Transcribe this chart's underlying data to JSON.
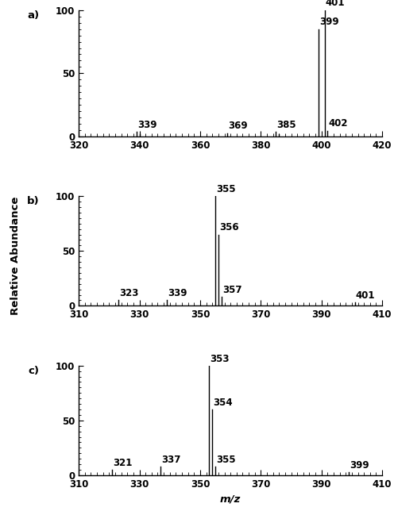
{
  "panel_a": {
    "label": "a)",
    "xlim": [
      320,
      420
    ],
    "ylim": [
      0,
      100
    ],
    "xticks": [
      320,
      340,
      360,
      380,
      400,
      420
    ],
    "yticks": [
      0,
      50,
      100
    ],
    "peaks": [
      {
        "mz": 339,
        "intensity": 3.5,
        "label": "339"
      },
      {
        "mz": 340,
        "intensity": 2.0,
        "label": ""
      },
      {
        "mz": 369,
        "intensity": 2.5,
        "label": "369"
      },
      {
        "mz": 385,
        "intensity": 3.5,
        "label": "385"
      },
      {
        "mz": 386,
        "intensity": 2.0,
        "label": ""
      },
      {
        "mz": 399,
        "intensity": 85.0,
        "label": "399"
      },
      {
        "mz": 401,
        "intensity": 100.0,
        "label": "401"
      },
      {
        "mz": 402,
        "intensity": 4.5,
        "label": "402"
      }
    ]
  },
  "panel_b": {
    "label": "b)",
    "xlim": [
      310,
      410
    ],
    "ylim": [
      0,
      100
    ],
    "xticks": [
      310,
      330,
      350,
      370,
      390,
      410
    ],
    "yticks": [
      0,
      50,
      100
    ],
    "peaks": [
      {
        "mz": 323,
        "intensity": 5.0,
        "label": "323"
      },
      {
        "mz": 339,
        "intensity": 5.0,
        "label": "339"
      },
      {
        "mz": 355,
        "intensity": 100.0,
        "label": "355"
      },
      {
        "mz": 356,
        "intensity": 65.0,
        "label": "356"
      },
      {
        "mz": 357,
        "intensity": 8.0,
        "label": "357"
      },
      {
        "mz": 401,
        "intensity": 3.0,
        "label": "401"
      }
    ]
  },
  "panel_c": {
    "label": "c)",
    "xlim": [
      310,
      410
    ],
    "ylim": [
      0,
      100
    ],
    "xticks": [
      310,
      330,
      350,
      370,
      390,
      410
    ],
    "yticks": [
      0,
      50,
      100
    ],
    "peaks": [
      {
        "mz": 321,
        "intensity": 5.0,
        "label": "321"
      },
      {
        "mz": 337,
        "intensity": 8.0,
        "label": "337"
      },
      {
        "mz": 353,
        "intensity": 100.0,
        "label": "353"
      },
      {
        "mz": 354,
        "intensity": 60.0,
        "label": "354"
      },
      {
        "mz": 355,
        "intensity": 8.0,
        "label": "355"
      },
      {
        "mz": 399,
        "intensity": 3.0,
        "label": "399"
      }
    ]
  },
  "ylabel": "Relative Abundance",
  "xlabel": "m/z",
  "line_color": "#000000",
  "bg_color": "#ffffff",
  "label_fontsize": 8.5,
  "tick_fontsize": 8.5,
  "axis_fontsize": 9.5
}
